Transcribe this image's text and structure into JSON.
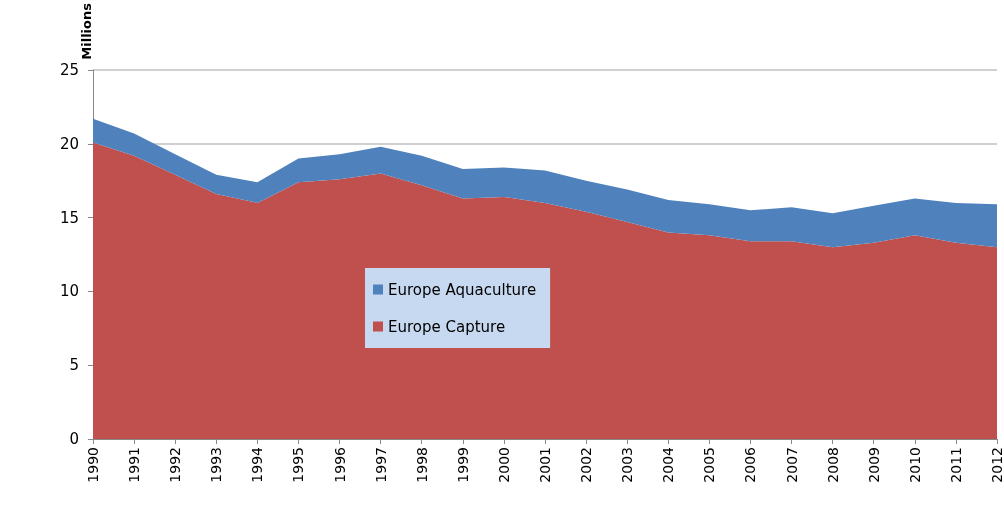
{
  "chart_data": {
    "type": "area",
    "ylabel": "Millions",
    "stacked": true,
    "categories": [
      "1990",
      "1991",
      "1992",
      "1993",
      "1994",
      "1995",
      "1996",
      "1997",
      "1998",
      "1999",
      "2000",
      "2001",
      "2002",
      "2003",
      "2004",
      "2005",
      "2006",
      "2007",
      "2008",
      "2009",
      "2010",
      "2011",
      "2012"
    ],
    "series": [
      {
        "name": "Europe Capture",
        "color": "#c0504d",
        "values": [
          20.1,
          19.2,
          17.9,
          16.6,
          16.0,
          17.4,
          17.6,
          18.0,
          17.2,
          16.3,
          16.4,
          16.0,
          15.4,
          14.7,
          14.0,
          13.8,
          13.4,
          13.4,
          13.0,
          13.3,
          13.8,
          13.3,
          13.0
        ]
      },
      {
        "name": "Europe Aquaculture",
        "color": "#4f81bd",
        "values": [
          1.6,
          1.5,
          1.4,
          1.3,
          1.4,
          1.6,
          1.7,
          1.8,
          2.0,
          2.0,
          2.0,
          2.2,
          2.1,
          2.2,
          2.2,
          2.1,
          2.1,
          2.3,
          2.3,
          2.5,
          2.5,
          2.7,
          2.9
        ]
      }
    ],
    "ylim": [
      0,
      25
    ],
    "yticks": [
      0,
      5,
      10,
      15,
      20,
      25
    ],
    "grid": "y",
    "legend": "center"
  }
}
